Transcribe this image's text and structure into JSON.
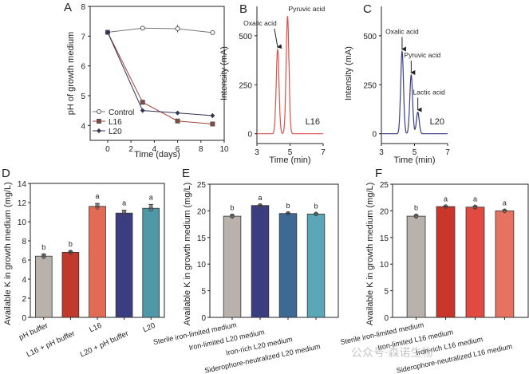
{
  "chart_data": [
    {
      "panel": "A",
      "type": "line",
      "xlabel": "Time (days)",
      "ylabel": "pH of growth medium",
      "xlim": [
        -1.5,
        10
      ],
      "ylim": [
        3.5,
        8
      ],
      "xticks": [
        0,
        2,
        4,
        6,
        8,
        10
      ],
      "yticks": [
        4,
        5,
        6,
        7,
        8
      ],
      "legend_position": "bottom-left",
      "x": [
        0,
        3,
        6,
        9
      ],
      "series": [
        {
          "name": "Control",
          "values": [
            7.13,
            7.27,
            7.25,
            7.12
          ],
          "errors": [
            0.03,
            0.02,
            0.12,
            0.06
          ],
          "marker": "circle-open",
          "color": "#777777"
        },
        {
          "name": "L16",
          "values": [
            7.13,
            4.78,
            4.15,
            4.05
          ],
          "errors": [
            0.03,
            0.08,
            0.03,
            0.03
          ],
          "marker": "square",
          "color": "#a0443c"
        },
        {
          "name": "L20",
          "values": [
            7.13,
            4.5,
            4.42,
            4.33
          ],
          "errors": [
            0.03,
            0.04,
            0.03,
            0.08
          ],
          "marker": "diamond",
          "color": "#333355"
        }
      ]
    },
    {
      "panel": "B",
      "type": "line",
      "xlabel": "Time (min)",
      "ylabel": "Intensity (mA)",
      "xlim": [
        3,
        7
      ],
      "ylim": [
        -50,
        650
      ],
      "xticks": [
        3,
        5,
        7
      ],
      "yticks": [
        0,
        250,
        500
      ],
      "trace_color": "#e0504a",
      "label": "L16",
      "peaks": [
        {
          "name": "Oxalic acid",
          "time": 4.25,
          "intensity": 430
        },
        {
          "name": "Pyruvic acid",
          "time": 4.85,
          "intensity": 600
        }
      ]
    },
    {
      "panel": "C",
      "type": "line",
      "xlabel": "Time (min)",
      "ylabel": "Intensity (mA)",
      "xlim": [
        3,
        7
      ],
      "ylim": [
        -50,
        650
      ],
      "xticks": [
        3,
        5,
        7
      ],
      "yticks": [
        0,
        250,
        500
      ],
      "trace_color": "#3a3d80",
      "label": "L20",
      "peaks": [
        {
          "name": "Oxalic acid",
          "time": 4.25,
          "intensity": 420
        },
        {
          "name": "Pyruvic acid",
          "time": 4.8,
          "intensity": 300
        },
        {
          "name": "Lactic acid",
          "time": 5.2,
          "intensity": 110
        }
      ]
    },
    {
      "panel": "D",
      "type": "bar",
      "ylabel": "Available K in growth medium (mg/L)",
      "ylim": [
        0,
        14
      ],
      "yticks": [
        0,
        2,
        4,
        6,
        8,
        10,
        12,
        14
      ],
      "categories": [
        "pH buffer",
        "L16 + pH buffer",
        "L16",
        "L20 + pH buffer",
        "L20"
      ],
      "values": [
        6.4,
        6.8,
        11.6,
        10.9,
        11.4
      ],
      "errors": [
        0.2,
        0.1,
        0.3,
        0.3,
        0.4
      ],
      "letters": [
        "b",
        "b",
        "a",
        "a",
        "a"
      ],
      "colors": [
        "#b9b1ac",
        "#c0392b",
        "#e26b55",
        "#3a3d80",
        "#4f98a7"
      ]
    },
    {
      "panel": "E",
      "type": "bar",
      "ylabel": "Available K in growth medium (mg/L)",
      "ylim": [
        0,
        25
      ],
      "yticks": [
        0,
        5,
        10,
        15,
        20,
        25
      ],
      "categories": [
        "Sterile iron-limited medium",
        "Iron-limited L20 medium",
        "Iron-rich L20 medium",
        "Siderophore-neutralized L20 medium"
      ],
      "values": [
        19.0,
        21.0,
        19.5,
        19.4
      ],
      "errors": [
        0.2,
        0.1,
        0.1,
        0.1
      ],
      "letters": [
        "b",
        "a",
        "b",
        "b"
      ],
      "colors": [
        "#b9b1ac",
        "#3a3d80",
        "#3d6a94",
        "#5aa7b5"
      ]
    },
    {
      "panel": "F",
      "type": "bar",
      "ylabel": "Available K in growth medium (mg/L)",
      "ylim": [
        0,
        25
      ],
      "yticks": [
        0,
        5,
        10,
        15,
        20,
        25
      ],
      "categories": [
        "Sterile iron-limited medium",
        "Iron-limited L16 medium",
        "Iron-rich L16 medium",
        "Siderophore-neutralized L16 medium"
      ],
      "values": [
        19.0,
        20.8,
        20.7,
        20.0
      ],
      "errors": [
        0.2,
        0.1,
        0.2,
        0.1
      ],
      "letters": [
        "b",
        "a",
        "a",
        "a"
      ],
      "colors": [
        "#b9b1ac",
        "#c8362a",
        "#e04a40",
        "#e87262"
      ]
    }
  ],
  "watermark": "公众号·森诺生物"
}
